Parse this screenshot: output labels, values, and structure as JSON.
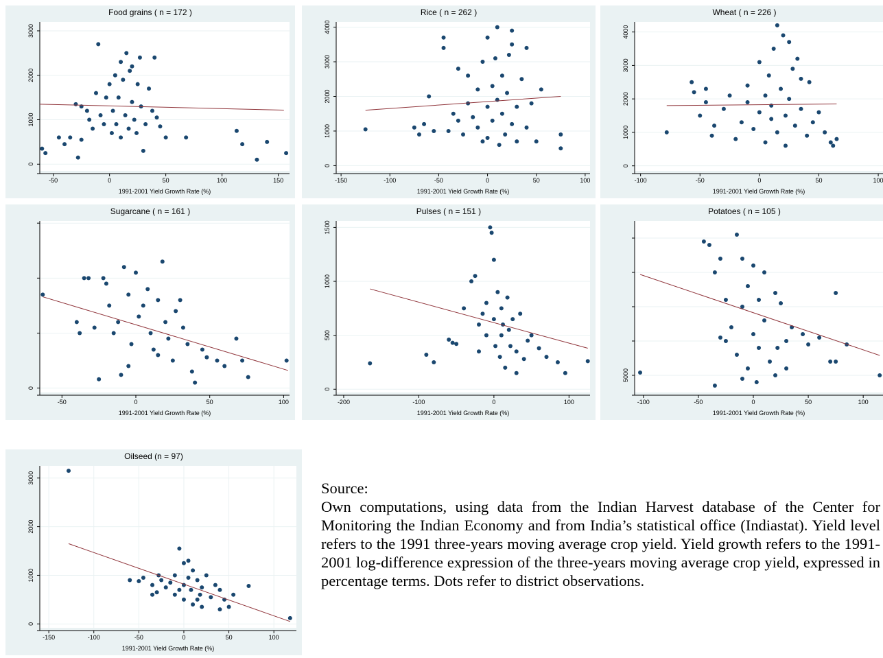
{
  "chart_data": [
    {
      "type": "scatter",
      "title": "Food grains ( n = 172 )",
      "xlabel": "1991-2001 Yield Growth Rate (%)",
      "color": "#1a476f",
      "grid": true,
      "xlim": [
        -62,
        160
      ],
      "ylim": [
        -150,
        3200
      ],
      "xticks": [
        -50,
        0,
        50,
        100,
        150
      ],
      "yticks": [
        0,
        1000,
        2000,
        3000
      ],
      "x": [
        -60,
        -57,
        -45,
        -40,
        -35,
        -28,
        -25,
        -30,
        -25,
        -20,
        -18,
        -15,
        -12,
        -10,
        -8,
        -5,
        -3,
        0,
        2,
        3,
        5,
        6,
        8,
        10,
        10,
        12,
        14,
        15,
        17,
        18,
        20,
        20,
        22,
        24,
        25,
        27,
        28,
        30,
        32,
        35,
        38,
        40,
        42,
        45,
        50,
        68,
        113,
        118,
        131,
        140,
        157
      ],
      "values": [
        350,
        250,
        600,
        450,
        600,
        150,
        550,
        1350,
        1300,
        1200,
        1000,
        800,
        1600,
        2700,
        1100,
        900,
        1500,
        1800,
        700,
        1200,
        2000,
        900,
        1500,
        2300,
        600,
        1900,
        1100,
        2500,
        800,
        2100,
        1400,
        2200,
        1000,
        700,
        1800,
        2400,
        1300,
        300,
        900,
        1700,
        1200,
        2400,
        1050,
        850,
        600,
        600,
        750,
        450,
        100,
        500,
        250
      ],
      "fit": {
        "x": [
          -62,
          155
        ],
        "values": [
          1350,
          1216
        ],
        "color": "#90353b"
      }
    },
    {
      "type": "scatter",
      "title": "Rice ( n = 262 )",
      "xlabel": "1991-2001 Yield Growth Rate (%)",
      "color": "#1a476f",
      "grid": true,
      "xlim": [
        -155,
        105
      ],
      "ylim": [
        -150,
        4150
      ],
      "xticks": [
        -150,
        -100,
        -50,
        0,
        50,
        100
      ],
      "yticks": [
        0,
        1000,
        2000,
        3000,
        4000
      ],
      "x": [
        -125,
        -75,
        -70,
        -60,
        -55,
        -45,
        -45,
        -40,
        -30,
        -30,
        -25,
        -20,
        -20,
        -15,
        -10,
        -10,
        -5,
        -5,
        0,
        0,
        0,
        5,
        5,
        8,
        10,
        10,
        12,
        15,
        15,
        18,
        20,
        22,
        25,
        25,
        25,
        30,
        30,
        35,
        40,
        45,
        55,
        75,
        75,
        -65,
        -35,
        40,
        50
      ],
      "values": [
        1050,
        1100,
        900,
        2000,
        1000,
        3700,
        3400,
        1000,
        1300,
        2800,
        900,
        1800,
        2600,
        1400,
        1100,
        2200,
        700,
        3000,
        1700,
        3700,
        800,
        1300,
        2300,
        3100,
        4000,
        1900,
        600,
        1500,
        2600,
        900,
        2100,
        3200,
        3500,
        1200,
        3900,
        1700,
        700,
        2500,
        1100,
        1800,
        2200,
        900,
        500,
        1200,
        1500,
        3400,
        700
      ],
      "fit": {
        "x": [
          -125,
          75
        ],
        "values": [
          1600,
          2000
        ],
        "color": "#90353b"
      }
    },
    {
      "type": "scatter",
      "title": "Wheat ( n = 226 )",
      "xlabel": "1991-2001 Yield Growth Rate (%)",
      "color": "#1a476f",
      "grid": true,
      "xlim": [
        -105,
        104
      ],
      "ylim": [
        -150,
        4300
      ],
      "xticks": [
        -100,
        -50,
        0,
        50,
        100
      ],
      "yticks": [
        0,
        1000,
        2000,
        3000,
        4000
      ],
      "x": [
        -78,
        -57,
        -55,
        -50,
        -45,
        -45,
        -40,
        -38,
        -30,
        -25,
        -20,
        -15,
        -10,
        -10,
        -5,
        0,
        0,
        5,
        5,
        8,
        10,
        10,
        12,
        15,
        15,
        18,
        20,
        22,
        22,
        25,
        25,
        28,
        30,
        32,
        35,
        35,
        40,
        42,
        45,
        50,
        55,
        60,
        65,
        62
      ],
      "values": [
        1000,
        2500,
        2200,
        1500,
        2300,
        1900,
        900,
        1200,
        1700,
        2100,
        800,
        1300,
        2400,
        1900,
        1100,
        3100,
        1600,
        2100,
        700,
        2700,
        1400,
        1800,
        3500,
        4200,
        1000,
        2300,
        3900,
        1500,
        600,
        3700,
        2000,
        2900,
        1200,
        3200,
        1700,
        2600,
        900,
        2500,
        1300,
        1600,
        1000,
        700,
        800,
        600
      ],
      "fit": {
        "x": [
          -78,
          65
        ],
        "values": [
          1800,
          1850
        ],
        "color": "#90353b"
      }
    },
    {
      "type": "scatter",
      "title": "Sugarcane ( n = 161 )",
      "xlabel": "1991-2001 Yield Growth Rate (%)",
      "color": "#1a476f",
      "grid": true,
      "xlim": [
        -65,
        104
      ],
      "ylim": [
        -4000,
        152000
      ],
      "xticks": [
        -50,
        0,
        50,
        100
      ],
      "yticks": [
        0
      ],
      "ygrid": [
        50000,
        100000,
        150000
      ],
      "x": [
        -63,
        -40,
        -38,
        -35,
        -32,
        -28,
        -25,
        -22,
        -20,
        -18,
        -15,
        -12,
        -10,
        -8,
        -5,
        -3,
        0,
        2,
        5,
        8,
        10,
        12,
        15,
        18,
        20,
        22,
        25,
        27,
        30,
        32,
        35,
        38,
        40,
        45,
        48,
        55,
        60,
        68,
        72,
        76,
        102,
        -5,
        15
      ],
      "values": [
        85000,
        60000,
        50000,
        100000,
        100000,
        55000,
        8000,
        100000,
        95000,
        75000,
        50000,
        60000,
        12000,
        110000,
        85000,
        40000,
        105000,
        65000,
        75000,
        90000,
        50000,
        35000,
        80000,
        115000,
        60000,
        45000,
        25000,
        70000,
        80000,
        55000,
        40000,
        15000,
        5000,
        35000,
        28000,
        25000,
        20000,
        45000,
        25000,
        10000,
        25000,
        20000,
        30000
      ],
      "fit": {
        "x": [
          -63,
          103
        ],
        "values": [
          83000,
          16000
        ],
        "color": "#90353b"
      }
    },
    {
      "type": "scatter",
      "title": "Pulses ( n = 151 )",
      "xlabel": "1991-2001 Yield Growth Rate (%)",
      "color": "#1a476f",
      "grid": true,
      "xlim": [
        -210,
        128
      ],
      "ylim": [
        -30,
        1560
      ],
      "xticks": [
        -200,
        -100,
        0,
        100
      ],
      "yticks": [
        0,
        500,
        1000,
        1500
      ],
      "x": [
        -165,
        -90,
        -80,
        -60,
        -55,
        -50,
        -40,
        -30,
        -25,
        -20,
        -15,
        -10,
        -10,
        -5,
        -3,
        0,
        0,
        2,
        5,
        8,
        10,
        10,
        12,
        15,
        18,
        20,
        22,
        25,
        30,
        35,
        40,
        45,
        50,
        60,
        70,
        85,
        95,
        125,
        -20,
        30
      ],
      "values": [
        240,
        320,
        250,
        460,
        430,
        420,
        750,
        1000,
        1050,
        600,
        700,
        800,
        500,
        1500,
        1450,
        1200,
        650,
        400,
        900,
        300,
        750,
        500,
        600,
        200,
        850,
        550,
        400,
        650,
        350,
        700,
        280,
        450,
        500,
        380,
        300,
        250,
        150,
        260,
        350,
        150
      ],
      "fit": {
        "x": [
          -165,
          125
        ],
        "values": [
          930,
          380
        ],
        "color": "#90353b"
      }
    },
    {
      "type": "scatter",
      "title": "Potatoes ( n = 105 )",
      "xlabel": "1991-2001 Yield Growth Rate (%)",
      "color": "#1a476f",
      "grid": true,
      "xlim": [
        -108,
        118
      ],
      "ylim": [
        2500,
        27500
      ],
      "xticks": [
        -100,
        -50,
        0,
        50,
        100
      ],
      "yticks": [
        5000
      ],
      "ygrid": [
        10000,
        15000,
        20000,
        25000
      ],
      "x": [
        -103,
        -45,
        -40,
        -35,
        -30,
        -25,
        -25,
        -20,
        -15,
        -15,
        -10,
        -10,
        -5,
        -5,
        0,
        0,
        3,
        5,
        5,
        10,
        10,
        15,
        20,
        22,
        25,
        30,
        30,
        35,
        45,
        50,
        60,
        70,
        75,
        75,
        85,
        115,
        -30,
        -10,
        20,
        -35
      ],
      "values": [
        5400,
        24500,
        24000,
        20000,
        22000,
        16000,
        10000,
        12000,
        25500,
        8000,
        22000,
        15000,
        18000,
        6000,
        21000,
        11000,
        4000,
        16000,
        9000,
        20000,
        13000,
        7000,
        17000,
        9000,
        15500,
        10000,
        6000,
        12000,
        11000,
        9500,
        10500,
        7000,
        17000,
        7000,
        9500,
        5000,
        10500,
        4500,
        5000,
        3500
      ],
      "fit": {
        "x": [
          -103,
          115
        ],
        "values": [
          19700,
          7900
        ],
        "color": "#90353b"
      }
    },
    {
      "type": "scatter",
      "title": "Oilseed (n = 97)",
      "xlabel": "1991-2001 Yield Growth Rate (%)",
      "color": "#1a476f",
      "grid": true,
      "xgrid": true,
      "xlim": [
        -160,
        125
      ],
      "ylim": [
        -80,
        3250
      ],
      "xticks": [
        -150,
        -100,
        -50,
        0,
        50,
        100
      ],
      "yticks": [
        0,
        1000,
        2000,
        3000
      ],
      "x": [
        -128,
        -60,
        -50,
        -45,
        -35,
        -30,
        -28,
        -25,
        -20,
        -15,
        -10,
        -10,
        -5,
        -5,
        0,
        0,
        0,
        5,
        5,
        8,
        10,
        10,
        15,
        18,
        20,
        20,
        25,
        30,
        35,
        40,
        40,
        45,
        50,
        55,
        72,
        118,
        -35,
        15
      ],
      "values": [
        3150,
        900,
        880,
        950,
        800,
        650,
        1000,
        900,
        750,
        850,
        1000,
        600,
        700,
        1550,
        1250,
        800,
        500,
        950,
        1300,
        700,
        1100,
        400,
        900,
        600,
        750,
        350,
        1000,
        550,
        800,
        300,
        700,
        500,
        350,
        600,
        780,
        120,
        600,
        500
      ],
      "fit": {
        "x": [
          -128,
          118
        ],
        "values": [
          1650,
          50
        ],
        "color": "#90353b"
      }
    }
  ],
  "source": {
    "heading": "Source:",
    "text": "Own computations, using data from the Indian Harvest database of the Center for Monitoring the Indian Economy and from India’s statistical office (Indiastat). Yield level refers to the 1991 three-years moving average crop yield. Yield growth refers to the 1991-2001 log-difference expression of the three-years moving average crop yield, expressed in percentage terms. Dots refer to district observations."
  }
}
